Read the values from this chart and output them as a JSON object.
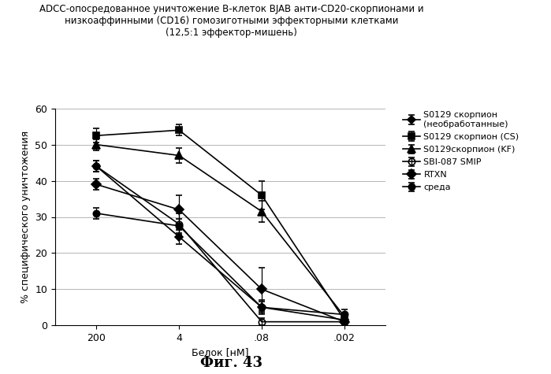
{
  "title_line1": "ADCC-опосредованное уничтожение В-клеток BJAB анти-CD20-скорпионами и",
  "title_line2": "низкоаффинными (CD16) гомозиготными эффекторными клетками",
  "title_line3": "(12,5:1 эффектор-мишень)",
  "xlabel": "Белок [нМ]",
  "ylabel": "% специфического уничтожения",
  "fig_label": "Фиг. 43",
  "x_positions": [
    0,
    1,
    2,
    3
  ],
  "x_tick_labels": [
    "200",
    "4",
    ".08",
    ".002"
  ],
  "ylim": [
    0,
    60
  ],
  "yticks": [
    0,
    10,
    20,
    30,
    40,
    50,
    60
  ],
  "series": [
    {
      "label": "S0129 скорпион\n(необработанные)",
      "y": [
        44.0,
        24.5,
        5.0,
        1.5
      ],
      "yerr": [
        1.5,
        2.0,
        1.5,
        1.0
      ],
      "marker": "D",
      "markersize": 5,
      "color": "#000000",
      "linestyle": "-",
      "linewidth": 1.2,
      "fillstyle": "full",
      "zorder": 3
    },
    {
      "label": "S0129 скорпион (CS)",
      "y": [
        52.5,
        54.0,
        36.0,
        1.5
      ],
      "yerr": [
        2.0,
        1.5,
        4.0,
        1.0
      ],
      "marker": "s",
      "markersize": 6,
      "color": "#000000",
      "linestyle": "-",
      "linewidth": 1.2,
      "fillstyle": "full",
      "zorder": 3
    },
    {
      "label": "S0129скорпион (KF)",
      "y": [
        50.0,
        47.0,
        31.5,
        2.5
      ],
      "yerr": [
        1.5,
        2.0,
        3.0,
        1.0
      ],
      "marker": "^",
      "markersize": 7,
      "color": "#000000",
      "linestyle": "-",
      "linewidth": 1.2,
      "fillstyle": "full",
      "zorder": 3
    },
    {
      "label": "SBI-087 SMIP",
      "y": [
        44.0,
        28.0,
        1.0,
        1.0
      ],
      "yerr": [
        1.5,
        3.0,
        1.0,
        1.0
      ],
      "marker": "o",
      "markersize": 6,
      "color": "#000000",
      "linestyle": "-",
      "linewidth": 1.2,
      "fillstyle": "none",
      "zorder": 3
    },
    {
      "label": "RTXN",
      "y": [
        39.0,
        32.0,
        10.0,
        1.0
      ],
      "yerr": [
        1.5,
        4.0,
        6.0,
        1.5
      ],
      "marker": "D",
      "markersize": 6,
      "color": "#000000",
      "linestyle": "-",
      "linewidth": 1.2,
      "fillstyle": "full",
      "zorder": 3
    },
    {
      "label": "среда",
      "y": [
        31.0,
        27.5,
        5.0,
        3.0
      ],
      "yerr": [
        1.5,
        2.0,
        2.0,
        1.5
      ],
      "marker": "o",
      "markersize": 6,
      "color": "#000000",
      "linestyle": "-",
      "linewidth": 1.2,
      "fillstyle": "full",
      "zorder": 3
    }
  ],
  "background_color": "#ffffff",
  "grid_color": "#aaaaaa",
  "title_fontsize": 8.5,
  "axis_label_fontsize": 9,
  "legend_fontsize": 8,
  "tick_fontsize": 9,
  "fig_label_fontsize": 13
}
